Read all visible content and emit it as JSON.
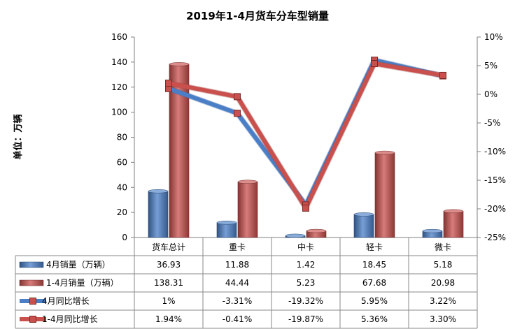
{
  "chart_data": {
    "type": "bar",
    "title": "2019年1-4月货车分车型销量",
    "ylabel": "单位：万辆",
    "categories": [
      "货车总计",
      "重卡",
      "中卡",
      "轻卡",
      "微卡"
    ],
    "ylim": [
      0,
      160
    ],
    "y_ticks": [
      "0",
      "20",
      "40",
      "60",
      "80",
      "100",
      "120",
      "140",
      "160"
    ],
    "y2lim": [
      -25,
      10
    ],
    "y2_ticks": [
      "-25%",
      "-20%",
      "-15%",
      "-10%",
      "-5%",
      "0%",
      "5%",
      "10%"
    ],
    "grid": false,
    "legend": "data-table",
    "bar_series": [
      {
        "name": "4月销量（万辆）",
        "color": "#4a7fc8",
        "values": [
          36.93,
          11.88,
          1.42,
          18.45,
          5.18
        ],
        "labels": [
          "36.93",
          "11.88",
          "1.42",
          "18.45",
          "5.18"
        ]
      },
      {
        "name": "1-4月销量（万辆）",
        "color": "#c9504d",
        "values": [
          138.31,
          44.44,
          5.23,
          67.68,
          20.98
        ],
        "labels": [
          "138.31",
          "44.44",
          "5.23",
          "67.68",
          "20.98"
        ]
      }
    ],
    "line_series": [
      {
        "name": "4月同比增长",
        "color": "#4a7fc8",
        "values": [
          1,
          -3.31,
          -19.32,
          5.95,
          3.22
        ],
        "labels": [
          "1%",
          "-3.31%",
          "-19.32%",
          "5.95%",
          "3.22%"
        ]
      },
      {
        "name": "1-4月同比增长",
        "color": "#c9504d",
        "values": [
          1.94,
          -0.41,
          -19.87,
          5.36,
          3.3
        ],
        "labels": [
          "1.94%",
          "-0.41%",
          "-19.87%",
          "5.36%",
          "3.30%"
        ]
      }
    ]
  }
}
